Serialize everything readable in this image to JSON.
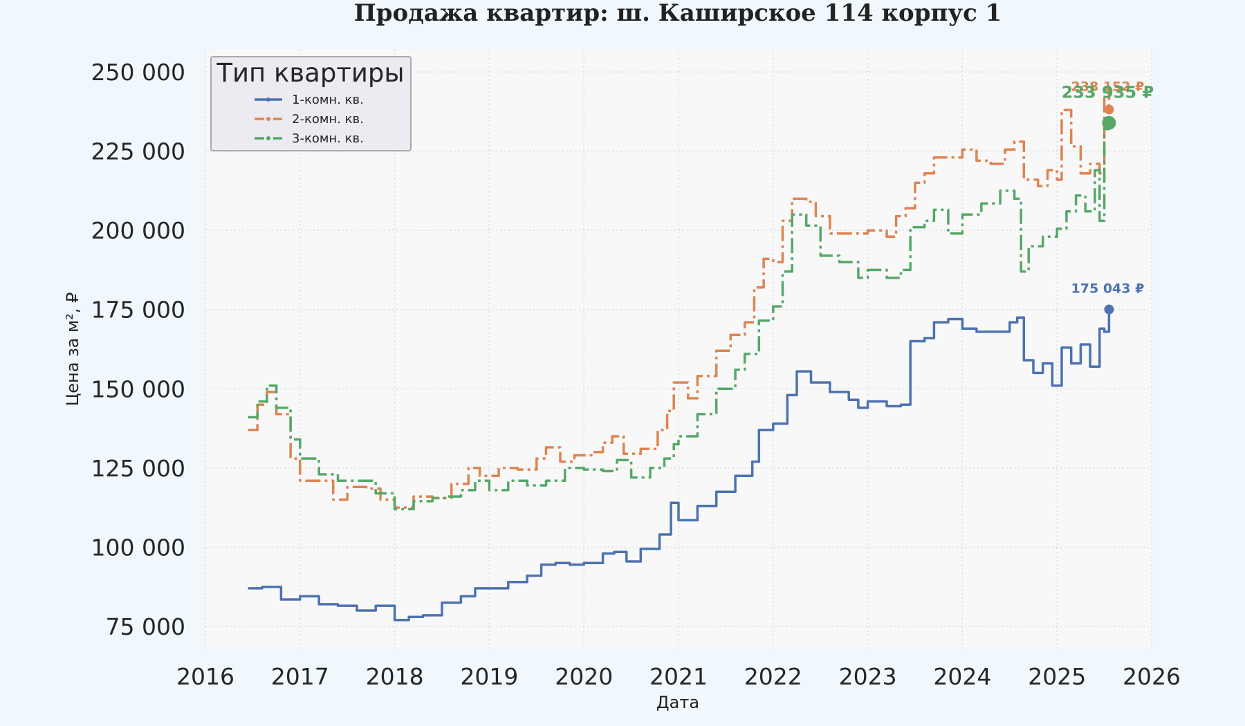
{
  "chart_data": {
    "type": "line",
    "title": "Продажа квартир: ш. Каширское 114 корпус 1",
    "xlabel": "Дата",
    "ylabel": "Цена за м², ₽",
    "xlim": [
      2016.0,
      2026.0
    ],
    "ylim": [
      68000,
      257000
    ],
    "x_ticks": [
      "2016",
      "2017",
      "2018",
      "2019",
      "2020",
      "2021",
      "2022",
      "2023",
      "2024",
      "2025",
      "2026"
    ],
    "y_ticks": [
      {
        "value": 75000,
        "label": "75 000"
      },
      {
        "value": 100000,
        "label": "100 000"
      },
      {
        "value": 125000,
        "label": "125 000"
      },
      {
        "value": 150000,
        "label": "150 000"
      },
      {
        "value": 175000,
        "label": "175 000"
      },
      {
        "value": 200000,
        "label": "200 000"
      },
      {
        "value": 225000,
        "label": "225 000"
      },
      {
        "value": 250000,
        "label": "250 000"
      }
    ],
    "grid": true,
    "legend": {
      "title": "Тип квартиры",
      "position": "top-left"
    },
    "series": [
      {
        "name": "1-комн. кв.",
        "color": "#4c72b0",
        "dash": "solid",
        "x": [
          2016.45,
          2016.6,
          2016.8,
          2017.0,
          2017.2,
          2017.4,
          2017.6,
          2017.8,
          2018.0,
          2018.15,
          2018.3,
          2018.5,
          2018.7,
          2018.85,
          2019.0,
          2019.2,
          2019.4,
          2019.55,
          2019.7,
          2019.85,
          2020.0,
          2020.2,
          2020.32,
          2020.45,
          2020.6,
          2020.8,
          2020.92,
          2021.0,
          2021.2,
          2021.4,
          2021.6,
          2021.78,
          2021.85,
          2022.0,
          2022.15,
          2022.25,
          2022.4,
          2022.6,
          2022.8,
          2022.9,
          2023.0,
          2023.2,
          2023.35,
          2023.45,
          2023.6,
          2023.7,
          2023.85,
          2024.0,
          2024.15,
          2024.3,
          2024.5,
          2024.58,
          2024.65,
          2024.75,
          2024.85,
          2024.95,
          2025.05,
          2025.15,
          2025.25,
          2025.35,
          2025.45,
          2025.5,
          2025.55
        ],
        "y": [
          87000,
          87500,
          83500,
          84500,
          82000,
          81500,
          80000,
          81500,
          77000,
          78000,
          78500,
          82500,
          84500,
          87000,
          87000,
          89000,
          91000,
          94500,
          95000,
          94500,
          95000,
          98000,
          98500,
          95500,
          99500,
          104000,
          114000,
          108500,
          113000,
          117500,
          122500,
          127000,
          137000,
          139000,
          148000,
          155500,
          152000,
          149000,
          146500,
          144000,
          146000,
          144500,
          145000,
          165000,
          166000,
          171000,
          172000,
          169000,
          168000,
          168000,
          171000,
          172500,
          159000,
          155000,
          158000,
          151000,
          163000,
          158000,
          164000,
          157000,
          169000,
          168000,
          175043
        ],
        "end_label": "175 043 ₽"
      },
      {
        "name": "2-комн. кв.",
        "color": "#dd8452",
        "dash": "dashdot",
        "x": [
          2016.45,
          2016.55,
          2016.65,
          2016.75,
          2016.9,
          2017.0,
          2017.2,
          2017.35,
          2017.5,
          2017.7,
          2017.85,
          2018.0,
          2018.2,
          2018.4,
          2018.6,
          2018.78,
          2018.9,
          2019.1,
          2019.3,
          2019.5,
          2019.6,
          2019.75,
          2019.9,
          2020.1,
          2020.2,
          2020.3,
          2020.42,
          2020.6,
          2020.78,
          2020.88,
          2020.95,
          2021.1,
          2021.2,
          2021.4,
          2021.55,
          2021.7,
          2021.8,
          2021.9,
          2022.0,
          2022.1,
          2022.2,
          2022.35,
          2022.45,
          2022.6,
          2022.8,
          2023.0,
          2023.2,
          2023.3,
          2023.4,
          2023.5,
          2023.6,
          2023.7,
          2023.85,
          2024.0,
          2024.15,
          2024.3,
          2024.45,
          2024.55,
          2024.65,
          2024.8,
          2024.9,
          2025.0,
          2025.05,
          2025.15,
          2025.25,
          2025.35,
          2025.45,
          2025.5,
          2025.55
        ],
        "y": [
          137000,
          145000,
          149000,
          142000,
          128000,
          121000,
          121000,
          115000,
          119000,
          118500,
          115000,
          112500,
          116000,
          115500,
          120000,
          125000,
          122500,
          125000,
          124500,
          128000,
          131500,
          127000,
          129000,
          130000,
          133000,
          135000,
          129500,
          131000,
          137000,
          143000,
          152000,
          147000,
          154000,
          162000,
          167000,
          171000,
          182000,
          191000,
          190000,
          203000,
          210000,
          209000,
          204500,
          199000,
          199000,
          200000,
          198000,
          204500,
          207000,
          215000,
          218000,
          223000,
          223000,
          225500,
          222000,
          221000,
          225500,
          228000,
          216000,
          214000,
          219000,
          216000,
          238000,
          226500,
          218000,
          221000,
          218000,
          245000,
          238152
        ],
        "end_label": "238 152 ₽"
      },
      {
        "name": "3-комн. кв.",
        "color": "#55a868",
        "dash": "dashdot",
        "x": [
          2016.45,
          2016.55,
          2016.65,
          2016.75,
          2016.9,
          2017.0,
          2017.2,
          2017.4,
          2017.6,
          2017.8,
          2018.0,
          2018.2,
          2018.4,
          2018.55,
          2018.7,
          2018.85,
          2019.0,
          2019.2,
          2019.4,
          2019.6,
          2019.8,
          2020.0,
          2020.2,
          2020.35,
          2020.5,
          2020.7,
          2020.85,
          2020.95,
          2021.0,
          2021.2,
          2021.4,
          2021.6,
          2021.7,
          2021.85,
          2022.0,
          2022.1,
          2022.2,
          2022.35,
          2022.5,
          2022.7,
          2022.9,
          2023.0,
          2023.2,
          2023.35,
          2023.45,
          2023.6,
          2023.7,
          2023.85,
          2024.0,
          2024.2,
          2024.4,
          2024.55,
          2024.62,
          2024.7,
          2024.85,
          2025.0,
          2025.1,
          2025.2,
          2025.3,
          2025.4,
          2025.45,
          2025.5,
          2025.55
        ],
        "y": [
          141000,
          146000,
          151000,
          144000,
          134000,
          128000,
          123000,
          121000,
          121000,
          117000,
          112000,
          114500,
          115500,
          116000,
          118000,
          121000,
          118000,
          121000,
          119500,
          121000,
          125000,
          124500,
          124000,
          127500,
          122000,
          125000,
          128000,
          132500,
          135000,
          142000,
          150000,
          156000,
          161000,
          171500,
          176000,
          187000,
          205000,
          201500,
          192000,
          190000,
          185000,
          187500,
          185000,
          187500,
          201000,
          203000,
          206500,
          199000,
          205000,
          208500,
          212500,
          210000,
          187000,
          195000,
          198000,
          200500,
          206000,
          211000,
          206000,
          219000,
          203000,
          232000,
          233935
        ],
        "end_label": "233 935 ₽"
      }
    ]
  }
}
